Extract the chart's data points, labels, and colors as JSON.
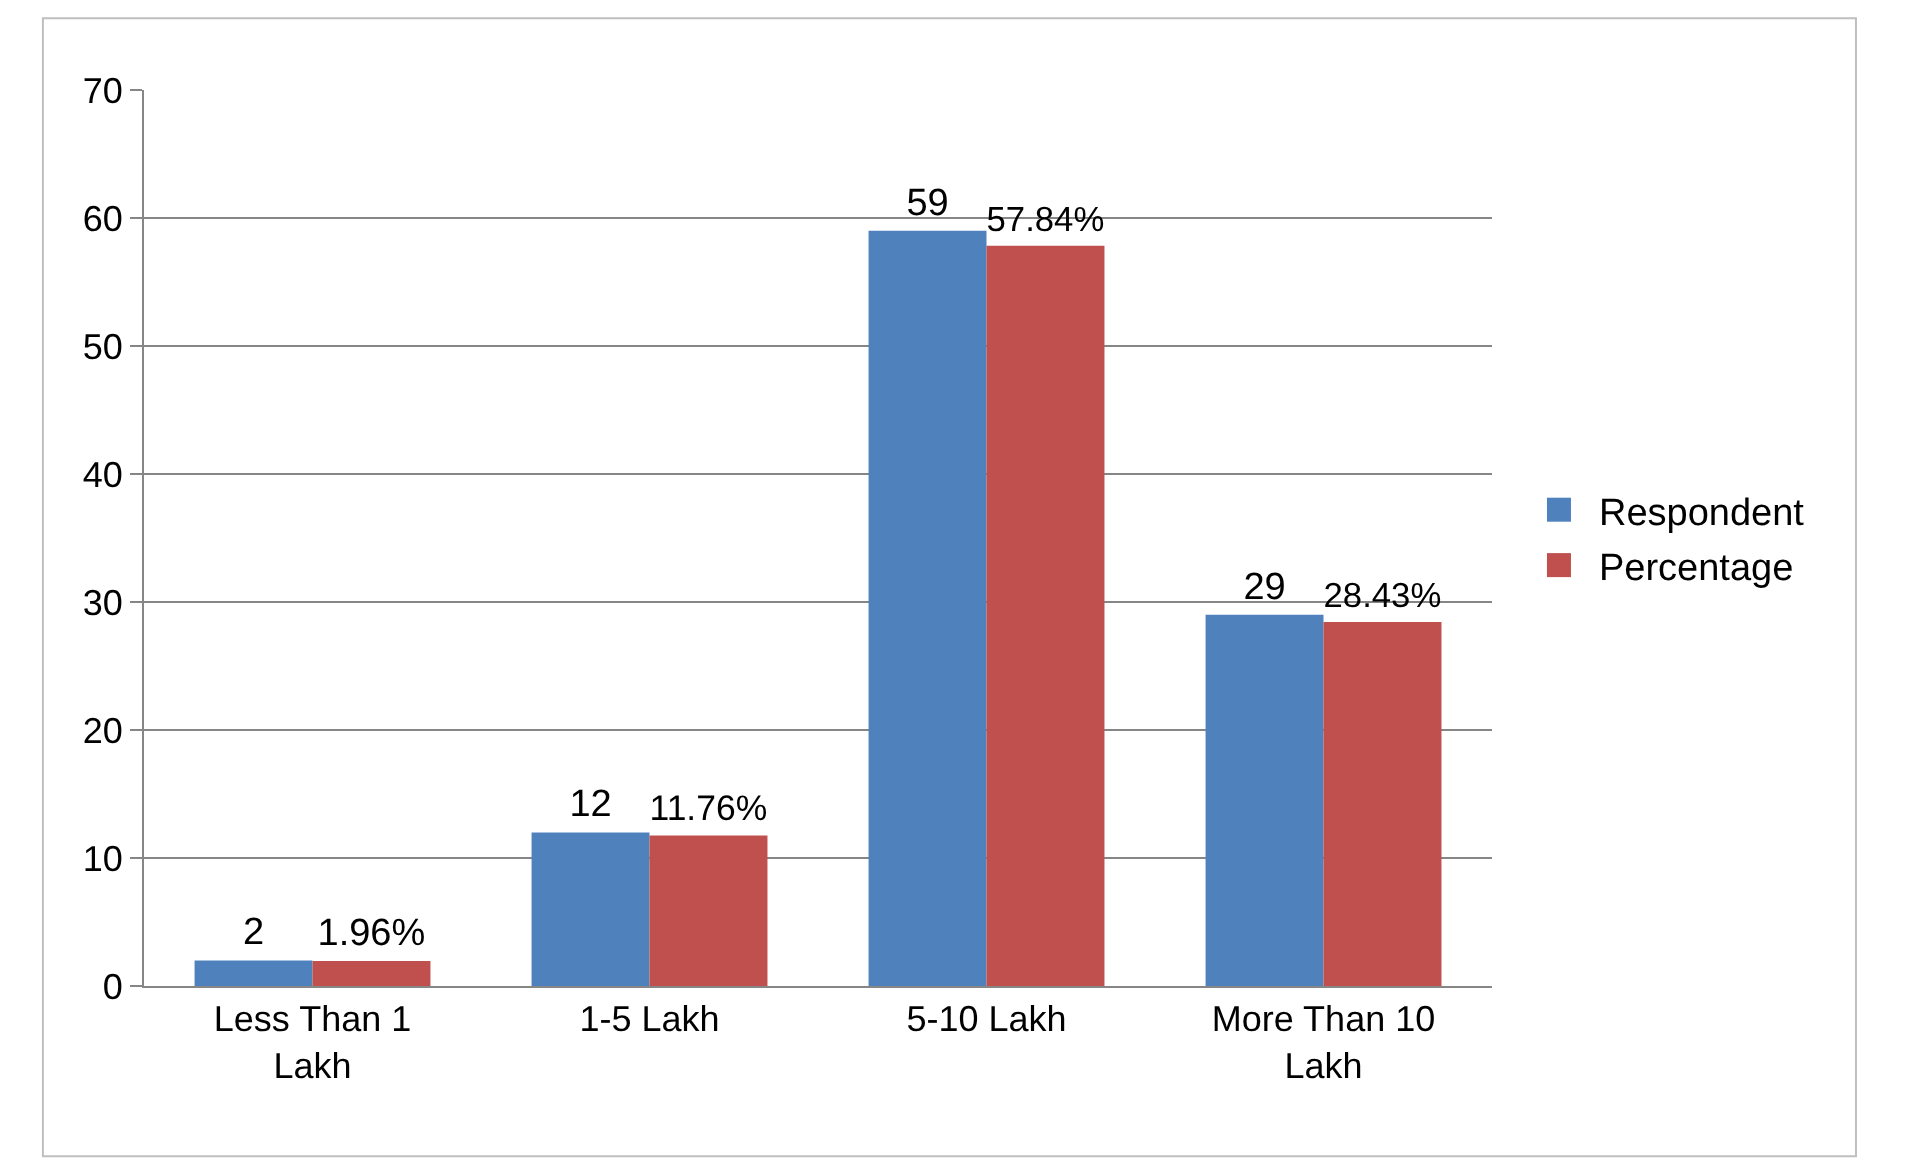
{
  "chart_data": {
    "type": "bar",
    "categories": [
      "Less Than 1 Lakh",
      "1-5 Lakh",
      "5-10 Lakh",
      "More Than 10 Lakh"
    ],
    "series": [
      {
        "name": "Respondent",
        "color": "#4f81bd",
        "values": [
          2,
          12,
          59,
          29
        ],
        "value_labels": [
          "2",
          "12",
          "59",
          "29"
        ]
      },
      {
        "name": "Percentage",
        "color": "#c0504d",
        "values": [
          1.96,
          11.76,
          57.84,
          28.43
        ],
        "value_labels": [
          "1.96%",
          "11.76%",
          "57.84%",
          "28.43%"
        ]
      }
    ],
    "ylim": [
      0,
      70
    ],
    "yticks": [
      0,
      10,
      20,
      30,
      40,
      50,
      60,
      70
    ],
    "grid": "y",
    "legend": "right"
  }
}
